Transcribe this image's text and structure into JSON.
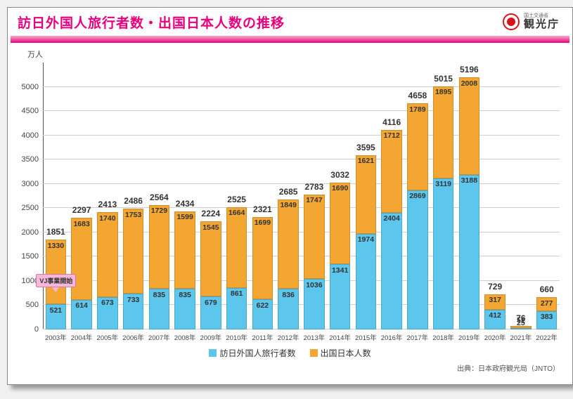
{
  "header": {
    "title": "訪日外国人旅行者数・出国日本人数の推移",
    "agency_small": "国土交通省",
    "agency_big": "観光庁"
  },
  "chart": {
    "type": "stacked-bar",
    "y_unit": "万人",
    "ylim": [
      0,
      5500
    ],
    "yticks": [
      0,
      500,
      1000,
      1500,
      2000,
      2500,
      3000,
      3500,
      4000,
      4500,
      5000
    ],
    "colors": {
      "inbound": "#5cc6ed",
      "outbound": "#f4a633",
      "grid": "#cfcfcf",
      "background": "#ffffff"
    },
    "legend": [
      {
        "label": "訪日外国人旅行者数",
        "color": "#5cc6ed"
      },
      {
        "label": "出国日本人数",
        "color": "#f4a633"
      }
    ],
    "series": [
      {
        "year": "2003年",
        "inbound": 521,
        "outbound": 1330,
        "total": 1851
      },
      {
        "year": "2004年",
        "inbound": 614,
        "outbound": 1683,
        "total": 2297
      },
      {
        "year": "2005年",
        "inbound": 673,
        "outbound": 1740,
        "total": 2413
      },
      {
        "year": "2006年",
        "inbound": 733,
        "outbound": 1753,
        "total": 2486
      },
      {
        "year": "2007年",
        "inbound": 835,
        "outbound": 1729,
        "total": 2564
      },
      {
        "year": "2008年",
        "inbound": 835,
        "outbound": 1599,
        "total": 2434
      },
      {
        "year": "2009年",
        "inbound": 679,
        "outbound": 1545,
        "total": 2224
      },
      {
        "year": "2010年",
        "inbound": 861,
        "outbound": 1664,
        "total": 2525
      },
      {
        "year": "2011年",
        "inbound": 622,
        "outbound": 1699,
        "total": 2321
      },
      {
        "year": "2012年",
        "inbound": 836,
        "outbound": 1849,
        "total": 2685
      },
      {
        "year": "2013年",
        "inbound": 1036,
        "outbound": 1747,
        "total": 2783
      },
      {
        "year": "2014年",
        "inbound": 1341,
        "outbound": 1690,
        "total": 3032
      },
      {
        "year": "2015年",
        "inbound": 1974,
        "outbound": 1621,
        "total": 3595
      },
      {
        "year": "2016年",
        "inbound": 2404,
        "outbound": 1712,
        "total": 4116
      },
      {
        "year": "2017年",
        "inbound": 2869,
        "outbound": 1789,
        "total": 4658
      },
      {
        "year": "2018年",
        "inbound": 3119,
        "outbound": 1895,
        "total": 5015
      },
      {
        "year": "2019年",
        "inbound": 3188,
        "outbound": 2008,
        "total": 5196
      },
      {
        "year": "2020年",
        "inbound": 412,
        "outbound": 317,
        "total": 729
      },
      {
        "year": "2021年",
        "inbound": 25,
        "outbound": 51,
        "total": 76
      },
      {
        "year": "2022年",
        "inbound": 383,
        "outbound": 277,
        "total": 660
      }
    ],
    "annotation": {
      "text": "VJ事業開始",
      "target_index": 0
    },
    "source": "出典：日本政府観光局（JNTO）"
  }
}
